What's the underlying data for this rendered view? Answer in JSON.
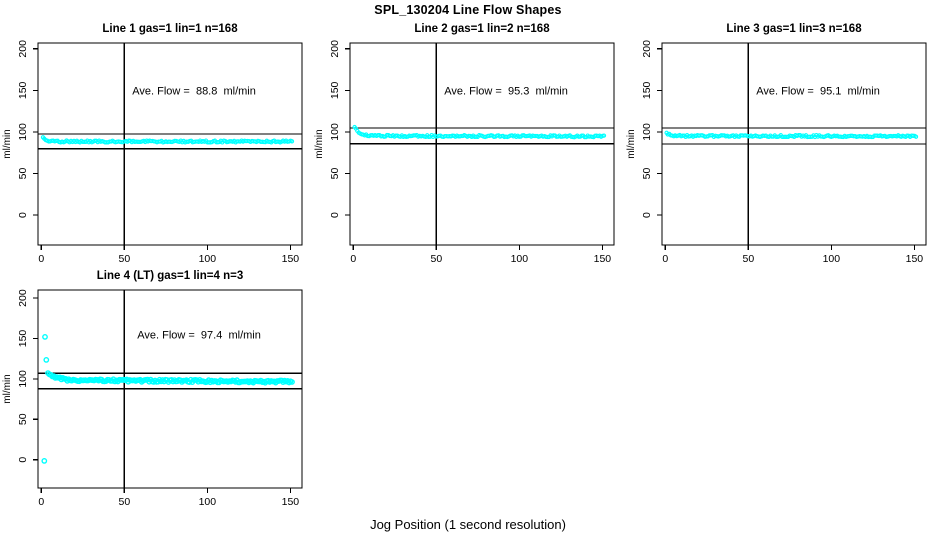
{
  "title": "SPL_130204  Line Flow Shapes",
  "xlabel": "Jog Position (1 second resolution)",
  "colors": {
    "points": "#00ffff",
    "axis": "#000000",
    "background": "#ffffff"
  },
  "chart_data": [
    {
      "type": "scatter",
      "title": "Line 1 gas=1 lin=1 n=168",
      "ylabel": "ml/min",
      "annotation": "Ave. Flow =  88.8  ml/min",
      "ave_flow_ml_min": 88.8,
      "n": 168,
      "x_ticks": [
        0,
        50,
        100,
        150
      ],
      "y_ticks": [
        0,
        50,
        100,
        150,
        200
      ],
      "x_range": [
        -2,
        157
      ],
      "y_range": [
        -36,
        207
      ],
      "vline_x": 50,
      "ref_line_upper": 97.7,
      "ref_line_lower": 79.9,
      "grid": false,
      "outlier_points": [
        [
          1.0,
          93.5
        ]
      ],
      "band": {
        "x_start": 1.8,
        "x_end": 151,
        "n_points": 168,
        "start_value": 91.5,
        "settle_value": 88.6,
        "settle_tau": 2.0,
        "end_value": 88.4,
        "noise": 1.1
      },
      "annotation_pos": [
        92,
        145
      ]
    },
    {
      "type": "scatter",
      "title": "Line 2 gas=1 lin=2 n=168",
      "ylabel": "ml/min",
      "annotation": "Ave. Flow =  95.3  ml/min",
      "ave_flow_ml_min": 95.3,
      "n": 168,
      "x_ticks": [
        0,
        50,
        100,
        150
      ],
      "y_ticks": [
        0,
        50,
        100,
        150,
        200
      ],
      "x_range": [
        -2,
        157
      ],
      "y_range": [
        -36,
        207
      ],
      "vline_x": 50,
      "ref_line_upper": 104.8,
      "ref_line_lower": 85.8,
      "grid": false,
      "outlier_points": [
        [
          0.8,
          106.0
        ]
      ],
      "band": {
        "x_start": 1.5,
        "x_end": 151,
        "n_points": 168,
        "start_value": 103.5,
        "settle_value": 95.3,
        "settle_tau": 2.5,
        "end_value": 94.7,
        "noise": 1.1
      },
      "annotation_pos": [
        92,
        145
      ]
    },
    {
      "type": "scatter",
      "title": "Line 3 gas=1 lin=3 n=168",
      "ylabel": "ml/min",
      "annotation": "Ave. Flow =  95.1  ml/min",
      "ave_flow_ml_min": 95.1,
      "n": 168,
      "x_ticks": [
        0,
        50,
        100,
        150
      ],
      "y_ticks": [
        0,
        50,
        100,
        150,
        200
      ],
      "x_range": [
        -2,
        157
      ],
      "y_range": [
        -36,
        207
      ],
      "vline_x": 50,
      "ref_line_upper": 104.6,
      "ref_line_lower": 85.6,
      "grid": false,
      "outlier_points": [
        [
          0.8,
          99.0
        ]
      ],
      "band": {
        "x_start": 1.5,
        "x_end": 151,
        "n_points": 168,
        "start_value": 98.0,
        "settle_value": 95.2,
        "settle_tau": 1.5,
        "end_value": 94.9,
        "noise": 1.1
      },
      "annotation_pos": [
        92,
        145
      ]
    },
    {
      "type": "scatter",
      "title": "Line 4 (LT) gas=1 lin=4 n=3",
      "ylabel": "ml/min",
      "annotation": "Ave. Flow =  97.4  ml/min",
      "ave_flow_ml_min": 97.4,
      "n": 3,
      "x_ticks": [
        0,
        50,
        100,
        150
      ],
      "y_ticks": [
        0,
        50,
        100,
        150,
        200
      ],
      "x_range": [
        -2,
        157
      ],
      "y_range": [
        -35,
        210
      ],
      "vline_x": 50,
      "ref_line_upper": 107.1,
      "ref_line_lower": 87.7,
      "grid": false,
      "outlier_points": [
        [
          1.8,
          -1.5
        ],
        [
          2.2,
          152.0
        ],
        [
          3.0,
          123.5
        ]
      ],
      "band": {
        "x_start": 4,
        "x_end": 151,
        "n_points": 165,
        "start_value": 108.0,
        "settle_value": 98.6,
        "settle_tau": 4.5,
        "end_value": 96.5,
        "noise": 1.5
      },
      "annotation_pos": [
        95,
        150
      ]
    }
  ]
}
